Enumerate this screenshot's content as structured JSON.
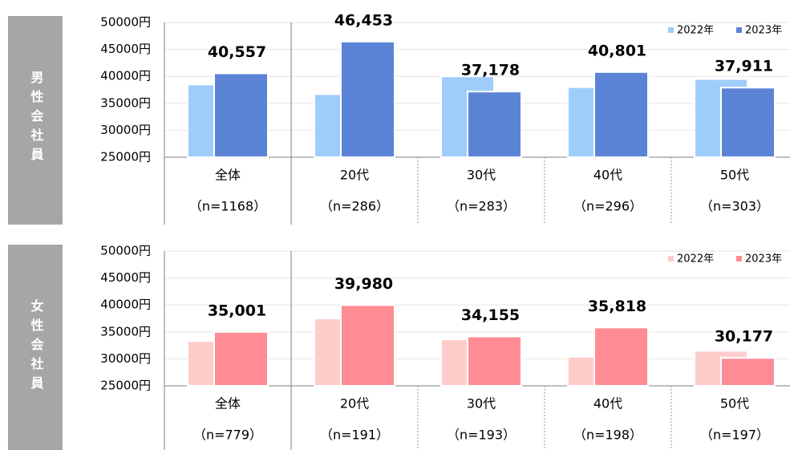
{
  "chart_data": [
    {
      "type": "bar",
      "side_label": "男性会社員",
      "categories": [
        "全体",
        "20代",
        "30代",
        "40代",
        "50代"
      ],
      "sample_sizes": [
        "（n=1168）",
        "（n=286）",
        "（n=283）",
        "（n=296）",
        "（n=303）"
      ],
      "series": [
        {
          "name": "2022年",
          "color": "#9fcdfb",
          "values": [
            38500,
            36700,
            40000,
            38000,
            39500
          ]
        },
        {
          "name": "2023年",
          "color": "#5b84d6",
          "values": [
            40557,
            46453,
            37178,
            40801,
            37911
          ],
          "value_labels": [
            "40,557",
            "46,453",
            "37,178",
            "40,801",
            "37,911"
          ]
        }
      ],
      "ylim": [
        25000,
        50000
      ],
      "yticks": [
        {
          "value": 25000,
          "label": "25000円"
        },
        {
          "value": 30000,
          "label": "30000円"
        },
        {
          "value": 35000,
          "label": "35000円"
        },
        {
          "value": 40000,
          "label": "40000円"
        },
        {
          "value": 45000,
          "label": "45000円"
        },
        {
          "value": 50000,
          "label": "50000円"
        }
      ],
      "grid": true,
      "legend": "top-right"
    },
    {
      "type": "bar",
      "side_label": "女性会社員",
      "categories": [
        "全体",
        "20代",
        "30代",
        "40代",
        "50代"
      ],
      "sample_sizes": [
        "（n=779）",
        "（n=191）",
        "（n=193）",
        "（n=198）",
        "（n=197）"
      ],
      "series": [
        {
          "name": "2022年",
          "color": "#ffcccc",
          "values": [
            33300,
            37500,
            33600,
            30400,
            31500
          ]
        },
        {
          "name": "2023年",
          "color": "#ff8c94",
          "values": [
            35001,
            39980,
            34155,
            35818,
            30177
          ],
          "value_labels": [
            "35,001",
            "39,980",
            "34,155",
            "35,818",
            "30,177"
          ]
        }
      ],
      "ylim": [
        25000,
        50000
      ],
      "yticks": [
        {
          "value": 25000,
          "label": "25000円"
        },
        {
          "value": 30000,
          "label": "30000円"
        },
        {
          "value": 35000,
          "label": "35000円"
        },
        {
          "value": 40000,
          "label": "40000円"
        },
        {
          "value": 45000,
          "label": "45000円"
        },
        {
          "value": 50000,
          "label": "50000円"
        }
      ],
      "grid": true,
      "legend": "top-right"
    }
  ]
}
